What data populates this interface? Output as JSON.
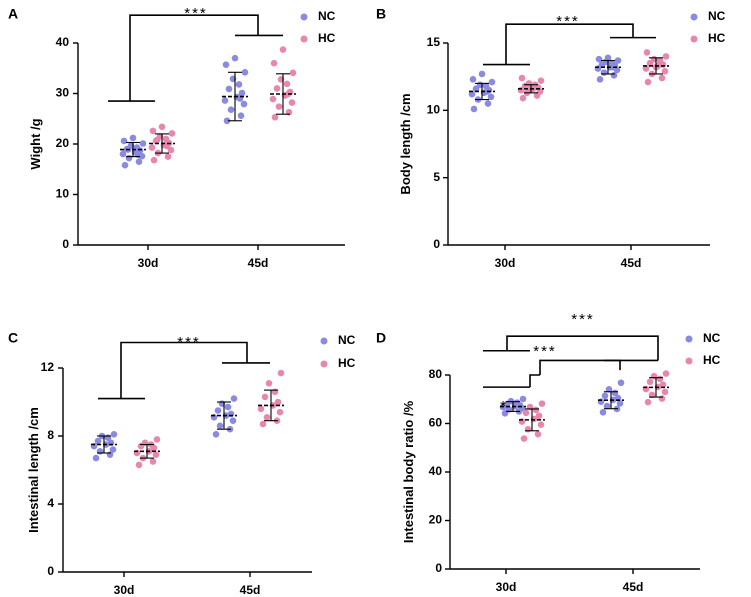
{
  "figure": {
    "colors": {
      "NC": "#8a8ae0",
      "HC": "#e887ad",
      "axis": "#000000"
    }
  },
  "chart_data": [
    {
      "panel_letter": "A",
      "type": "scatter",
      "title": "",
      "xlabel": "",
      "ylabel": "Wight /g",
      "ylim": [
        0,
        40
      ],
      "yticks": [
        0,
        10,
        20,
        30,
        40
      ],
      "categories": [
        "30d",
        "45d"
      ],
      "legend": [
        "NC",
        "HC"
      ],
      "legend_position": "top-right",
      "series": [
        {
          "name": "NC",
          "group": "30d",
          "mean": 18.9,
          "sd": 1.4,
          "values": [
            15.8,
            16.5,
            17.2,
            17.6,
            18.0,
            18.4,
            18.7,
            19.0,
            19.3,
            19.7,
            20.1,
            20.6,
            21.2,
            17.9,
            18.9
          ]
        },
        {
          "name": "HC",
          "group": "30d",
          "mean": 20.1,
          "sd": 1.9,
          "values": [
            16.8,
            17.5,
            18.2,
            18.8,
            19.3,
            19.8,
            20.2,
            20.6,
            21.0,
            21.5,
            22.1,
            22.6,
            23.4,
            19.6,
            20.8
          ]
        },
        {
          "name": "NC",
          "group": "45d",
          "mean": 29.4,
          "sd": 4.8,
          "values": [
            24.6,
            25.6,
            26.8,
            27.9,
            28.6,
            29.3,
            30.1,
            30.9,
            31.8,
            32.9,
            34.2,
            35.7,
            37.0,
            29.0
          ]
        },
        {
          "name": "HC",
          "group": "45d",
          "mean": 29.9,
          "sd": 4.0,
          "values": [
            25.3,
            26.3,
            27.4,
            28.2,
            28.9,
            29.6,
            30.3,
            31.0,
            31.9,
            32.8,
            34.1,
            36.0,
            38.7,
            29.9
          ]
        }
      ],
      "significance": [
        {
          "label": "***",
          "compare": "30d vs 45d"
        }
      ]
    },
    {
      "panel_letter": "B",
      "type": "scatter",
      "title": "",
      "xlabel": "",
      "ylabel": "Body length /cm",
      "ylim": [
        0,
        15
      ],
      "yticks": [
        0,
        5,
        10,
        15
      ],
      "categories": [
        "30d",
        "45d"
      ],
      "legend": [
        "NC",
        "HC"
      ],
      "legend_position": "top-right",
      "series": [
        {
          "name": "NC",
          "group": "30d",
          "mean": 11.4,
          "sd": 0.6,
          "values": [
            10.1,
            10.5,
            10.8,
            11.0,
            11.2,
            11.3,
            11.5,
            11.6,
            11.8,
            11.9,
            12.1,
            12.3,
            12.7,
            11.4
          ]
        },
        {
          "name": "HC",
          "group": "30d",
          "mean": 11.6,
          "sd": 0.3,
          "values": [
            10.9,
            11.1,
            11.3,
            11.4,
            11.5,
            11.6,
            11.7,
            11.8,
            11.9,
            12.0,
            12.2,
            12.4,
            11.6
          ]
        },
        {
          "name": "NC",
          "group": "45d",
          "mean": 13.2,
          "sd": 0.5,
          "values": [
            12.3,
            12.6,
            12.8,
            13.0,
            13.1,
            13.2,
            13.3,
            13.4,
            13.5,
            13.6,
            13.7,
            13.8,
            13.9,
            13.2
          ]
        },
        {
          "name": "HC",
          "group": "45d",
          "mean": 13.3,
          "sd": 0.6,
          "values": [
            12.1,
            12.4,
            12.7,
            12.9,
            13.1,
            13.3,
            13.4,
            13.5,
            13.7,
            13.8,
            14.0,
            14.3,
            13.2
          ]
        }
      ],
      "significance": [
        {
          "label": "***",
          "compare": "30d vs 45d"
        }
      ]
    },
    {
      "panel_letter": "C",
      "type": "scatter",
      "title": "",
      "xlabel": "",
      "ylabel": "Intestinal length /cm",
      "ylim": [
        0,
        12
      ],
      "yticks": [
        0,
        4,
        8,
        12
      ],
      "categories": [
        "30d",
        "45d"
      ],
      "legend": [
        "NC",
        "HC"
      ],
      "legend_position": "top-right",
      "series": [
        {
          "name": "NC",
          "group": "30d",
          "mean": 7.5,
          "sd": 0.5,
          "values": [
            6.7,
            6.9,
            7.1,
            7.2,
            7.4,
            7.5,
            7.6,
            7.7,
            7.9,
            8.0,
            8.1
          ]
        },
        {
          "name": "HC",
          "group": "30d",
          "mean": 7.1,
          "sd": 0.4,
          "values": [
            6.3,
            6.5,
            6.7,
            6.9,
            7.0,
            7.1,
            7.3,
            7.4,
            7.5,
            7.6,
            7.8
          ]
        },
        {
          "name": "NC",
          "group": "45d",
          "mean": 9.2,
          "sd": 0.8,
          "values": [
            8.1,
            8.4,
            8.6,
            8.9,
            9.1,
            9.2,
            9.3,
            9.5,
            9.7,
            9.9,
            10.2
          ]
        },
        {
          "name": "HC",
          "group": "45d",
          "mean": 9.8,
          "sd": 0.9,
          "values": [
            8.7,
            8.9,
            9.1,
            9.4,
            9.6,
            9.8,
            10.0,
            10.3,
            10.6,
            11.1,
            11.7
          ]
        }
      ],
      "significance": [
        {
          "label": "***",
          "compare": "30d vs 45d"
        }
      ]
    },
    {
      "panel_letter": "D",
      "type": "scatter",
      "title": "",
      "xlabel": "",
      "ylabel": "Intestinal body ratio /%",
      "ylim": [
        0,
        80
      ],
      "yticks": [
        0,
        20,
        40,
        60,
        80
      ],
      "categories": [
        "30d",
        "45d"
      ],
      "legend": [
        "NC",
        "HC"
      ],
      "legend_position": "top-right",
      "series": [
        {
          "name": "NC",
          "group": "30d",
          "mean": 67.0,
          "sd": 2.0,
          "values": [
            64.2,
            65.0,
            65.8,
            66.3,
            66.8,
            67.1,
            67.5,
            68.0,
            68.6,
            69.2,
            70.1
          ]
        },
        {
          "name": "HC",
          "group": "30d",
          "mean": 61.5,
          "sd": 4.5,
          "values": [
            53.8,
            55.6,
            57.6,
            59.5,
            60.8,
            61.9,
            63.2,
            64.4,
            65.6,
            66.8,
            68.2
          ]
        },
        {
          "name": "NC",
          "group": "45d",
          "mean": 69.6,
          "sd": 3.5,
          "values": [
            64.6,
            66.0,
            67.2,
            68.3,
            69.0,
            69.7,
            70.5,
            71.4,
            72.6,
            74.1,
            76.8
          ]
        },
        {
          "name": "HC",
          "group": "45d",
          "mean": 74.9,
          "sd": 4.0,
          "values": [
            68.8,
            70.3,
            71.8,
            73.0,
            74.2,
            75.1,
            76.0,
            77.2,
            78.4,
            79.5,
            80.6
          ]
        }
      ],
      "significance": [
        {
          "label": "*",
          "compare": "NC-30d vs HC-30d"
        },
        {
          "label": "***",
          "compare": "HC-30d vs NC-45d"
        },
        {
          "label": "***",
          "compare": "30d vs HC-45d"
        }
      ]
    }
  ]
}
